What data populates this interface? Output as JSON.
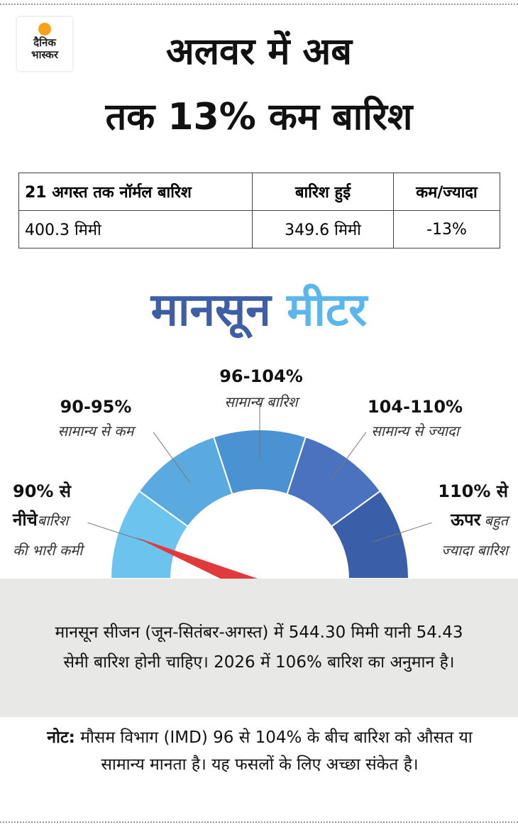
{
  "logo": {
    "line1": "दैनिक",
    "line2": "भास्कर"
  },
  "header": {
    "title_lines": [
      "अलवर में अब",
      "तक 13% कम बारिश"
    ]
  },
  "table": {
    "headers": [
      "21 अगस्त तक नॉर्मल बारिश",
      "बारिश हुई",
      "कम/ज्यादा"
    ],
    "rows": [
      [
        "400.3 मिमी",
        "349.6 मिमी",
        "-13%"
      ]
    ]
  },
  "meter": {
    "title_parts": [
      "मानसून",
      "मीटर"
    ],
    "segments": [
      {
        "range_lines": [
          "90% से",
          "नीचे"
        ],
        "label_lines": [
          "बारिश",
          "की भारी कमी"
        ]
      },
      {
        "range_lines": [
          "90-95%"
        ],
        "label_lines": [
          "सामान्य से कम"
        ]
      },
      {
        "range_lines": [
          "96-104%"
        ],
        "label_lines": [
          "सामान्य बारिश"
        ]
      },
      {
        "range_lines": [
          "104-110%"
        ],
        "label_lines": [
          "सामान्य से ज्यादा"
        ]
      },
      {
        "range_lines": [
          "110% से",
          "ऊपर"
        ],
        "label_lines": [
          "बहुत",
          "ज्यादा बारिश"
        ]
      }
    ]
  },
  "info": {
    "text": "मानसून सीजन (जून-सितंबर-अगस्त) में 544.30 मिमी यानी 54.43 सेमी बारिश होनी चाहिए। 2026 में 106% बारिश का अनुमान है।"
  },
  "note": {
    "label": "नोट:",
    "text": "मौसम विभाग (IMD) 96 से 104% के बीच बारिश को औसत या सामान्य मानता है। यह फसलों के लिए अच्छा संकेत है।"
  }
}
